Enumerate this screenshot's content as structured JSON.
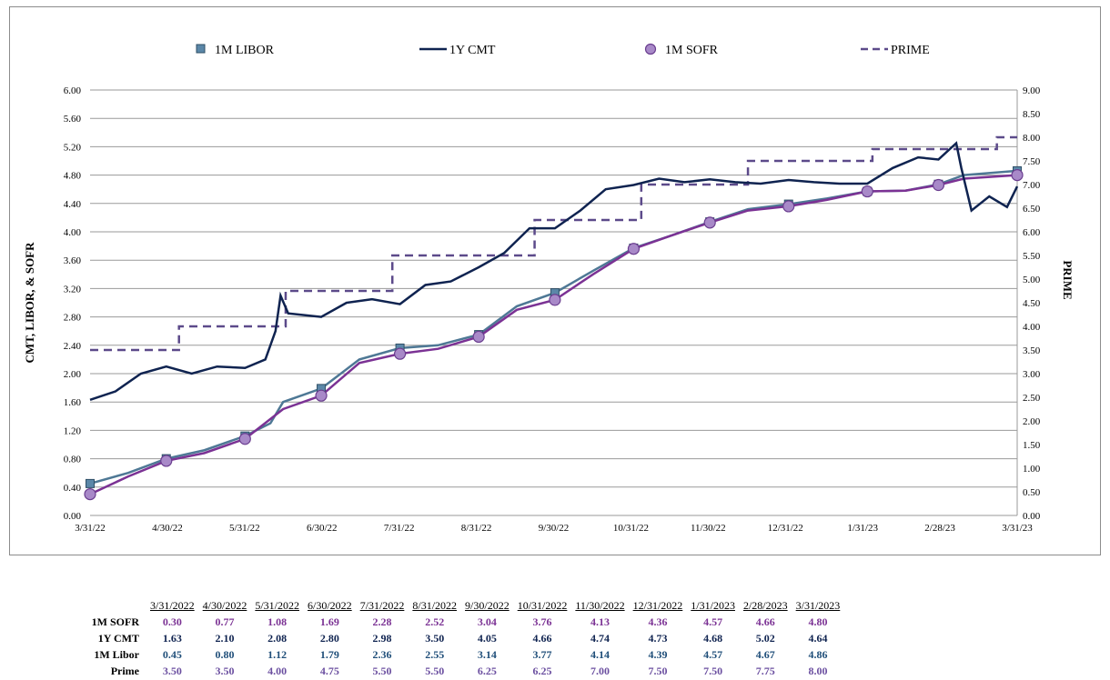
{
  "chart_data": {
    "type": "line",
    "x_ticks": [
      "3/31/22",
      "4/30/22",
      "5/31/22",
      "6/30/22",
      "7/31/22",
      "8/31/22",
      "9/30/22",
      "10/31/22",
      "11/30/22",
      "12/31/22",
      "1/31/23",
      "2/28/23",
      "3/31/23"
    ],
    "y_left": {
      "label": "CMT, LIBOR, & SOFR",
      "range": [
        0.0,
        6.0
      ],
      "ticks": [
        "0.00",
        "0.40",
        "0.80",
        "1.20",
        "1.60",
        "2.00",
        "2.40",
        "2.80",
        "3.20",
        "3.60",
        "4.00",
        "4.40",
        "4.80",
        "5.20",
        "5.60",
        "6.00"
      ]
    },
    "y_right": {
      "label": "PRIME",
      "range": [
        0.0,
        9.0
      ],
      "ticks": [
        "0.00",
        "0.50",
        "1.00",
        "1.50",
        "2.00",
        "2.50",
        "3.00",
        "3.50",
        "4.00",
        "4.50",
        "5.00",
        "5.50",
        "6.00",
        "6.50",
        "7.00",
        "7.50",
        "8.00",
        "8.50",
        "9.00"
      ]
    },
    "grid": true,
    "legend_position": "top",
    "series": [
      {
        "name": "1M LIBOR",
        "axis": "left",
        "color": "#4e7895",
        "marker": "square",
        "points": [
          [
            "2022-03-31",
            0.45
          ],
          [
            "2022-04-15",
            0.6
          ],
          [
            "2022-04-30",
            0.8
          ],
          [
            "2022-05-15",
            0.92
          ],
          [
            "2022-05-31",
            1.12
          ],
          [
            "2022-06-10",
            1.3
          ],
          [
            "2022-06-15",
            1.6
          ],
          [
            "2022-06-30",
            1.79
          ],
          [
            "2022-07-15",
            2.2
          ],
          [
            "2022-07-31",
            2.36
          ],
          [
            "2022-08-15",
            2.4
          ],
          [
            "2022-08-31",
            2.55
          ],
          [
            "2022-09-15",
            2.95
          ],
          [
            "2022-09-30",
            3.14
          ],
          [
            "2022-10-15",
            3.45
          ],
          [
            "2022-10-31",
            3.77
          ],
          [
            "2022-11-15",
            3.95
          ],
          [
            "2022-11-30",
            4.14
          ],
          [
            "2022-12-15",
            4.32
          ],
          [
            "2022-12-31",
            4.39
          ],
          [
            "2023-01-15",
            4.47
          ],
          [
            "2023-01-31",
            4.57
          ],
          [
            "2023-02-15",
            4.58
          ],
          [
            "2023-02-28",
            4.67
          ],
          [
            "2023-03-10",
            4.8
          ],
          [
            "2023-03-31",
            4.86
          ]
        ]
      },
      {
        "name": "1Y CMT",
        "axis": "left",
        "color": "#0f2350",
        "marker": "none",
        "points": [
          [
            "2022-03-31",
            1.63
          ],
          [
            "2022-04-10",
            1.75
          ],
          [
            "2022-04-20",
            2.0
          ],
          [
            "2022-04-30",
            2.1
          ],
          [
            "2022-05-10",
            2.0
          ],
          [
            "2022-05-20",
            2.1
          ],
          [
            "2022-05-31",
            2.08
          ],
          [
            "2022-06-08",
            2.2
          ],
          [
            "2022-06-12",
            2.6
          ],
          [
            "2022-06-14",
            3.1
          ],
          [
            "2022-06-17",
            2.85
          ],
          [
            "2022-06-30",
            2.8
          ],
          [
            "2022-07-10",
            3.0
          ],
          [
            "2022-07-20",
            3.05
          ],
          [
            "2022-07-31",
            2.98
          ],
          [
            "2022-08-10",
            3.25
          ],
          [
            "2022-08-20",
            3.3
          ],
          [
            "2022-08-31",
            3.5
          ],
          [
            "2022-09-10",
            3.7
          ],
          [
            "2022-09-20",
            4.05
          ],
          [
            "2022-09-30",
            4.05
          ],
          [
            "2022-10-10",
            4.3
          ],
          [
            "2022-10-20",
            4.6
          ],
          [
            "2022-10-31",
            4.66
          ],
          [
            "2022-11-10",
            4.75
          ],
          [
            "2022-11-20",
            4.7
          ],
          [
            "2022-11-30",
            4.74
          ],
          [
            "2022-12-10",
            4.7
          ],
          [
            "2022-12-20",
            4.68
          ],
          [
            "2022-12-31",
            4.73
          ],
          [
            "2023-01-10",
            4.7
          ],
          [
            "2023-01-20",
            4.68
          ],
          [
            "2023-01-31",
            4.68
          ],
          [
            "2023-02-10",
            4.9
          ],
          [
            "2023-02-20",
            5.05
          ],
          [
            "2023-02-28",
            5.02
          ],
          [
            "2023-03-07",
            5.25
          ],
          [
            "2023-03-09",
            4.9
          ],
          [
            "2023-03-13",
            4.3
          ],
          [
            "2023-03-20",
            4.5
          ],
          [
            "2023-03-27",
            4.35
          ],
          [
            "2023-03-31",
            4.64
          ]
        ]
      },
      {
        "name": "1M SOFR",
        "axis": "left",
        "color": "#7b3294",
        "marker": "circle",
        "points": [
          [
            "2022-03-31",
            0.3
          ],
          [
            "2022-04-15",
            0.55
          ],
          [
            "2022-04-30",
            0.77
          ],
          [
            "2022-05-15",
            0.88
          ],
          [
            "2022-05-31",
            1.08
          ],
          [
            "2022-06-15",
            1.5
          ],
          [
            "2022-06-30",
            1.69
          ],
          [
            "2022-07-15",
            2.15
          ],
          [
            "2022-07-31",
            2.28
          ],
          [
            "2022-08-15",
            2.35
          ],
          [
            "2022-08-31",
            2.52
          ],
          [
            "2022-09-15",
            2.9
          ],
          [
            "2022-09-30",
            3.04
          ],
          [
            "2022-10-15",
            3.4
          ],
          [
            "2022-10-31",
            3.76
          ],
          [
            "2022-11-15",
            3.95
          ],
          [
            "2022-11-30",
            4.13
          ],
          [
            "2022-12-15",
            4.3
          ],
          [
            "2022-12-31",
            4.36
          ],
          [
            "2023-01-15",
            4.45
          ],
          [
            "2023-01-31",
            4.57
          ],
          [
            "2023-02-15",
            4.58
          ],
          [
            "2023-02-28",
            4.66
          ],
          [
            "2023-03-10",
            4.75
          ],
          [
            "2023-03-31",
            4.8
          ]
        ]
      },
      {
        "name": "PRIME",
        "axis": "right",
        "color": "#5c4a8a",
        "marker": "dash",
        "step": true,
        "points": [
          [
            "2022-03-31",
            3.5
          ],
          [
            "2022-05-05",
            4.0
          ],
          [
            "2022-06-16",
            4.75
          ],
          [
            "2022-07-28",
            5.5
          ],
          [
            "2022-09-22",
            6.25
          ],
          [
            "2022-11-03",
            7.0
          ],
          [
            "2022-12-15",
            7.5
          ],
          [
            "2023-02-02",
            7.75
          ],
          [
            "2023-03-23",
            8.0
          ],
          [
            "2023-03-31",
            8.0
          ]
        ]
      }
    ],
    "table": {
      "dates": [
        "3/31/2022",
        "4/30/2022",
        "5/31/2022",
        "6/30/2022",
        "7/31/2022",
        "8/31/2022",
        "9/30/2022",
        "10/31/2022",
        "11/30/2022",
        "12/31/2022",
        "1/31/2023",
        "2/28/2023",
        "3/31/2023"
      ],
      "rows": [
        {
          "label": "1M SOFR",
          "color": "#7b3294",
          "values": [
            "0.30",
            "0.77",
            "1.08",
            "1.69",
            "2.28",
            "2.52",
            "3.04",
            "3.76",
            "4.13",
            "4.36",
            "4.57",
            "4.66",
            "4.80"
          ]
        },
        {
          "label": "1Y CMT",
          "color": "#0f2350",
          "values": [
            "1.63",
            "2.10",
            "2.08",
            "2.80",
            "2.98",
            "3.50",
            "4.05",
            "4.66",
            "4.74",
            "4.73",
            "4.68",
            "5.02",
            "4.64"
          ]
        },
        {
          "label": "1M Libor",
          "color": "#1f4e79",
          "values": [
            "0.45",
            "0.80",
            "1.12",
            "1.79",
            "2.36",
            "2.55",
            "3.14",
            "3.77",
            "4.14",
            "4.39",
            "4.57",
            "4.67",
            "4.86"
          ]
        },
        {
          "label": "Prime",
          "color": "#6b4fa0",
          "values": [
            "3.50",
            "3.50",
            "4.00",
            "4.75",
            "5.50",
            "5.50",
            "6.25",
            "6.25",
            "7.00",
            "7.50",
            "7.50",
            "7.75",
            "8.00"
          ]
        }
      ]
    }
  }
}
